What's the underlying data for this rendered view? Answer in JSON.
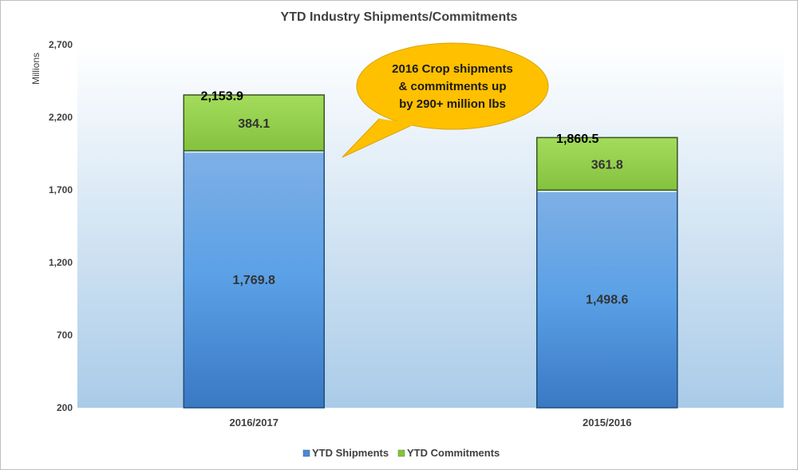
{
  "chart_data": {
    "type": "bar",
    "stacked": true,
    "title": "YTD Industry Shipments/Commitments",
    "ylabel": "Millions",
    "xlabel": "",
    "ylim": [
      200,
      2700
    ],
    "yticks": [
      200,
      700,
      1200,
      1700,
      2200,
      2700
    ],
    "ytick_labels": [
      "200",
      "700",
      "1,200",
      "1,700",
      "2,200",
      "2,700"
    ],
    "categories": [
      "2016/2017",
      "2015/2016"
    ],
    "series": [
      {
        "name": "YTD Shipments",
        "values": [
          1769.8,
          1498.6
        ],
        "labels": [
          "1,769.8",
          "1,498.6"
        ],
        "color": "#5b9bd5"
      },
      {
        "name": "YTD Commitments",
        "values": [
          384.1,
          361.8
        ],
        "labels": [
          "384.1",
          "361.8"
        ],
        "color": "#92d050"
      }
    ],
    "totals": [
      2153.9,
      1860.5
    ],
    "total_labels": [
      "2,153.9",
      "1,860.5"
    ],
    "annotation": {
      "lines": [
        "2016 Crop shipments",
        "& commitments up",
        "by 290+ million lbs"
      ],
      "color": "#ffc000"
    },
    "legend_position": "bottom",
    "grid": false
  }
}
